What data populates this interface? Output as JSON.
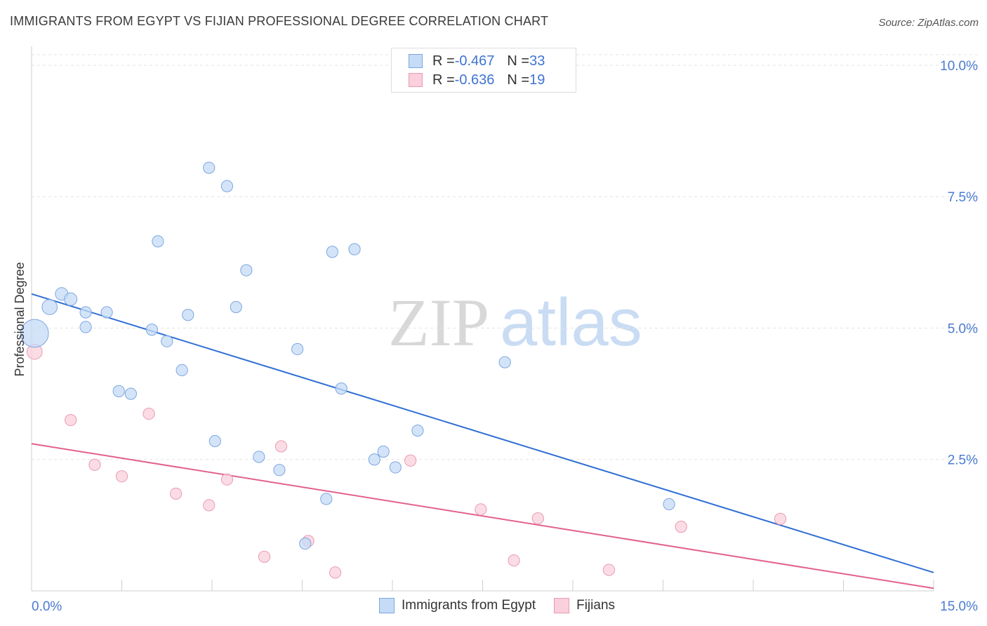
{
  "title": "IMMIGRANTS FROM EGYPT VS FIJIAN PROFESSIONAL DEGREE CORRELATION CHART",
  "source": "Source: ZipAtlas.com",
  "watermark": {
    "zip": "ZIP",
    "atlas": "atlas"
  },
  "legend": {
    "r_label": "R = ",
    "n_label": "N = ",
    "rows": [
      {
        "r": "-0.467",
        "n": "33",
        "color": "#a8c8f0",
        "border": "#6f9fe0"
      },
      {
        "r": "-0.636",
        "n": "19",
        "color": "#f7c0d0",
        "border": "#e890aa"
      }
    ]
  },
  "bottom_legend": [
    {
      "label": "Immigrants from Egypt",
      "color": "#c5dbf6",
      "border": "#7aa6e2"
    },
    {
      "label": "Fijians",
      "color": "#f9d0dc",
      "border": "#e99ab2"
    }
  ],
  "chart_data": {
    "type": "scatter",
    "title": "IMMIGRANTS FROM EGYPT VS FIJIAN PROFESSIONAL DEGREE CORRELATION CHART",
    "xlabel": "",
    "ylabel": "Professional Degree",
    "xlim": [
      0,
      15
    ],
    "ylim": [
      0,
      10.2
    ],
    "x_ticks": [
      0,
      15
    ],
    "x_tick_labels": [
      "0.0%",
      "15.0%"
    ],
    "y_ticks": [
      2.5,
      5.0,
      7.5,
      10.0
    ],
    "y_tick_labels": [
      "2.5%",
      "5.0%",
      "7.5%",
      "10.0%"
    ],
    "grid": true,
    "legend_position": "top-center",
    "series": [
      {
        "name": "Immigrants from Egypt",
        "color": "#7aa6e2",
        "fill": "#c5dbf6",
        "points": [
          [
            0.05,
            4.9,
            2.2
          ],
          [
            0.3,
            5.4,
            1.2
          ],
          [
            0.5,
            5.65,
            1.0
          ],
          [
            0.65,
            5.55,
            1.0
          ],
          [
            0.9,
            5.3,
            0.9
          ],
          [
            0.9,
            5.02,
            0.9
          ],
          [
            1.25,
            5.3,
            0.9
          ],
          [
            1.45,
            3.8,
            0.9
          ],
          [
            1.65,
            3.75,
            0.9
          ],
          [
            2.0,
            4.97,
            0.9
          ],
          [
            2.1,
            6.65,
            0.9
          ],
          [
            2.25,
            4.75,
            0.9
          ],
          [
            2.5,
            4.2,
            0.9
          ],
          [
            2.6,
            5.25,
            0.9
          ],
          [
            2.95,
            8.05,
            0.9
          ],
          [
            3.05,
            2.85,
            0.9
          ],
          [
            3.25,
            7.7,
            0.9
          ],
          [
            3.4,
            5.4,
            0.9
          ],
          [
            3.57,
            6.1,
            0.9
          ],
          [
            3.78,
            2.55,
            0.9
          ],
          [
            4.12,
            2.3,
            0.9
          ],
          [
            4.42,
            4.6,
            0.9
          ],
          [
            4.55,
            0.9,
            0.9
          ],
          [
            4.9,
            1.75,
            0.9
          ],
          [
            5.0,
            6.45,
            0.9
          ],
          [
            5.15,
            3.85,
            0.9
          ],
          [
            5.37,
            6.5,
            0.9
          ],
          [
            5.7,
            2.5,
            0.9
          ],
          [
            5.85,
            2.65,
            0.9
          ],
          [
            6.05,
            2.35,
            0.9
          ],
          [
            6.42,
            3.05,
            0.9
          ],
          [
            7.87,
            4.35,
            0.9
          ],
          [
            10.6,
            1.65,
            0.9
          ]
        ],
        "trend": [
          [
            0,
            5.65
          ],
          [
            15,
            0.35
          ]
        ]
      },
      {
        "name": "Fijians",
        "color": "#e99ab2",
        "fill": "#f9d0dc",
        "points": [
          [
            0.05,
            4.55,
            1.2
          ],
          [
            0.65,
            3.25,
            0.9
          ],
          [
            1.05,
            2.4,
            0.9
          ],
          [
            1.5,
            2.18,
            0.9
          ],
          [
            1.95,
            3.37,
            0.9
          ],
          [
            2.4,
            1.85,
            0.9
          ],
          [
            2.95,
            1.63,
            0.9
          ],
          [
            3.25,
            2.12,
            0.9
          ],
          [
            3.87,
            0.65,
            0.9
          ],
          [
            4.15,
            2.75,
            0.9
          ],
          [
            4.6,
            0.95,
            0.9
          ],
          [
            5.05,
            0.35,
            0.9
          ],
          [
            6.3,
            2.48,
            0.9
          ],
          [
            7.47,
            1.55,
            0.9
          ],
          [
            8.02,
            0.58,
            0.9
          ],
          [
            8.42,
            1.38,
            0.9
          ],
          [
            9.6,
            0.4,
            0.9
          ],
          [
            10.8,
            1.22,
            0.9
          ],
          [
            12.45,
            1.37,
            0.9
          ]
        ],
        "trend": [
          [
            0,
            2.8
          ],
          [
            15,
            0.05
          ]
        ]
      }
    ]
  }
}
